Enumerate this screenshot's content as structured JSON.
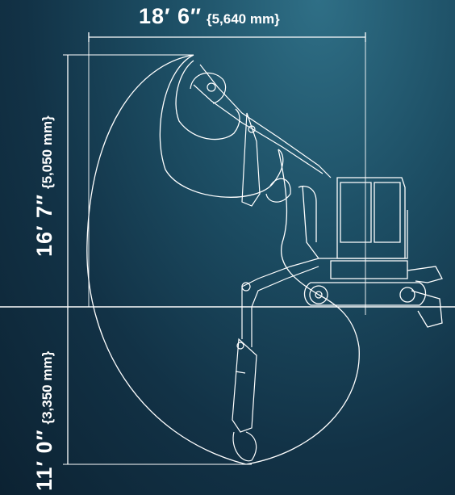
{
  "dimensions": {
    "reach": {
      "imperial": "18′ 6″",
      "metric": "{5,640 mm}"
    },
    "height": {
      "imperial": "16′ 7″",
      "metric": "{5,050 mm}"
    },
    "depth": {
      "imperial": "11′ 0″",
      "metric": "{3,350 mm}"
    }
  },
  "colors": {
    "line": "#ffffff",
    "background_top": "#2f6f86",
    "background_bottom": "#0c2232"
  }
}
